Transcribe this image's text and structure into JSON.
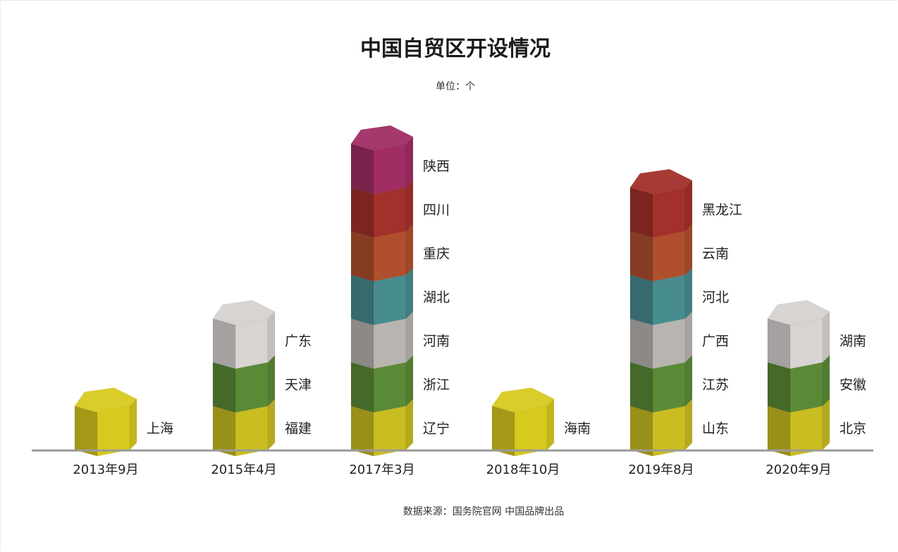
{
  "chart_data": {
    "type": "bar",
    "title": "中国自贸区开设情况",
    "subtitle": "单位：个",
    "source": "数据来源：国务院官网 中国品牌出品",
    "categories": [
      "2013年9月",
      "2015年4月",
      "2017年3月",
      "2018年10月",
      "2019年8月",
      "2020年9月"
    ],
    "values": [
      1,
      3,
      7,
      1,
      6,
      3
    ],
    "stacks": [
      [
        "上海"
      ],
      [
        "福建",
        "天津",
        "广东"
      ],
      [
        "辽宁",
        "浙江",
        "河南",
        "湖北",
        "重庆",
        "四川",
        "陕西"
      ],
      [
        "海南"
      ],
      [
        "山东",
        "江苏",
        "广西",
        "河北",
        "云南",
        "黑龙江"
      ],
      [
        "北京",
        "安徽",
        "湖南"
      ]
    ],
    "ylim": [
      0,
      7
    ],
    "grid": false,
    "level_colors": [
      "#c9bd22",
      "#5b8a36",
      "#b8b4b0",
      "#478c8f",
      "#b04f2e",
      "#a3302a",
      "#a02d64"
    ],
    "single_color": "#d8c91e",
    "top_color_gray": "#d8d4d2"
  }
}
